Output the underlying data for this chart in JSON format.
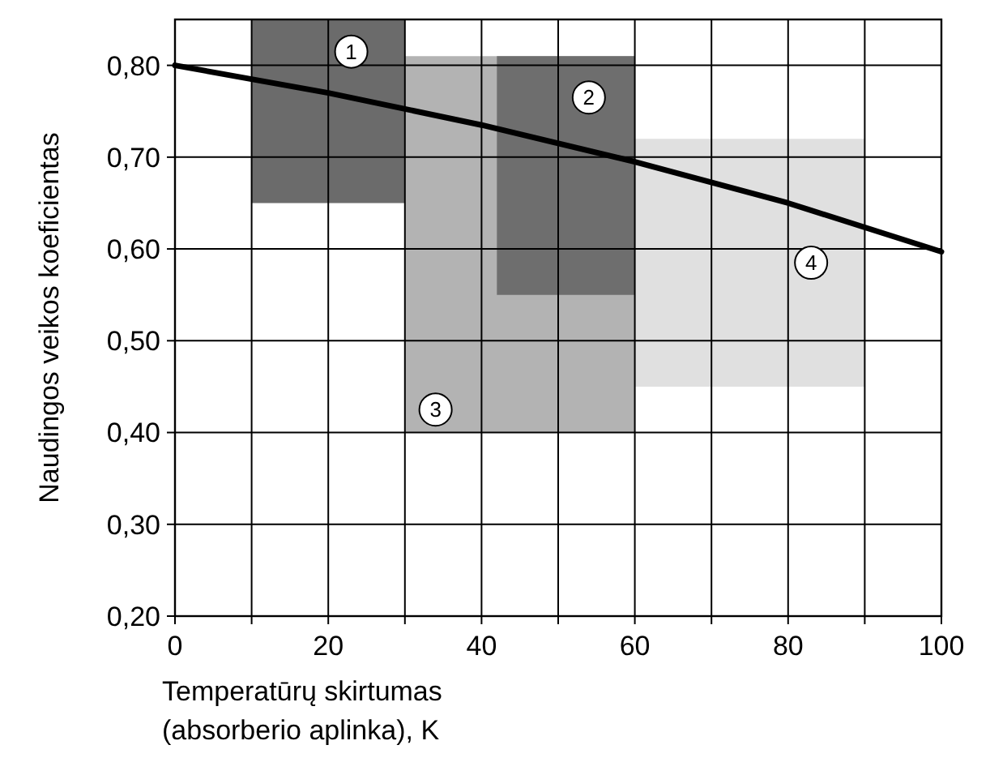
{
  "chart_data": {
    "type": "line",
    "xlabel": "Temperatūrų skirtumas\n(absorberio aplinka), K",
    "ylabel": "Naudingos veikos koeficientas",
    "xlim": [
      0,
      100
    ],
    "xticks": [
      0,
      {
        "value": 10,
        "label": null
      },
      20,
      {
        "value": 30,
        "label": null
      },
      40,
      {
        "value": 50,
        "label": null
      },
      60,
      {
        "value": 70,
        "label": null
      },
      80,
      {
        "value": 90,
        "label": null
      },
      100
    ],
    "ylim": [
      0.2,
      0.85
    ],
    "yticks": [
      {
        "value": 0.2,
        "label": "0,20"
      },
      {
        "value": 0.3,
        "label": "0,30"
      },
      {
        "value": 0.4,
        "label": "0,40"
      },
      {
        "value": 0.5,
        "label": "0,50"
      },
      {
        "value": 0.6,
        "label": "0,60"
      },
      {
        "value": 0.7,
        "label": "0,70"
      },
      {
        "value": 0.8,
        "label": "0,80"
      }
    ],
    "grid": true,
    "legend": false,
    "series": [
      {
        "color": "#b3b3b3",
        "x": [
          30,
          60
        ],
        "values": [
          null,
          null
        ],
        "lower": [
          0.4,
          0.4
        ],
        "upper": [
          0.81,
          0.81
        ]
      },
      {
        "color": "#e0e0e0",
        "x": [
          60,
          90
        ],
        "values": [
          null,
          null
        ],
        "lower": [
          0.45,
          0.45
        ],
        "upper": [
          0.72,
          0.72
        ]
      },
      {
        "color": "#6e6e6e",
        "x": [
          42,
          60
        ],
        "values": [
          null,
          null
        ],
        "lower": [
          0.55,
          0.55
        ],
        "upper": [
          0.81,
          0.81
        ]
      },
      {
        "color": "#6b6b6b",
        "x": [
          10,
          30
        ],
        "values": [
          null,
          null
        ],
        "lower": [
          0.65,
          0.65
        ],
        "upper": [
          0.85,
          0.85
        ]
      },
      {
        "color": "#000000",
        "x": [
          0,
          20,
          40,
          60,
          80,
          100
        ],
        "values": [
          0.8,
          0.77,
          0.735,
          0.695,
          0.65,
          0.597
        ]
      }
    ],
    "annotations": [
      {
        "text": "1",
        "x": 23,
        "y": 0.815
      },
      {
        "text": "2",
        "x": 54,
        "y": 0.765
      },
      {
        "text": "3",
        "x": 34,
        "y": 0.425
      },
      {
        "text": "4",
        "x": 83,
        "y": 0.585
      }
    ]
  }
}
